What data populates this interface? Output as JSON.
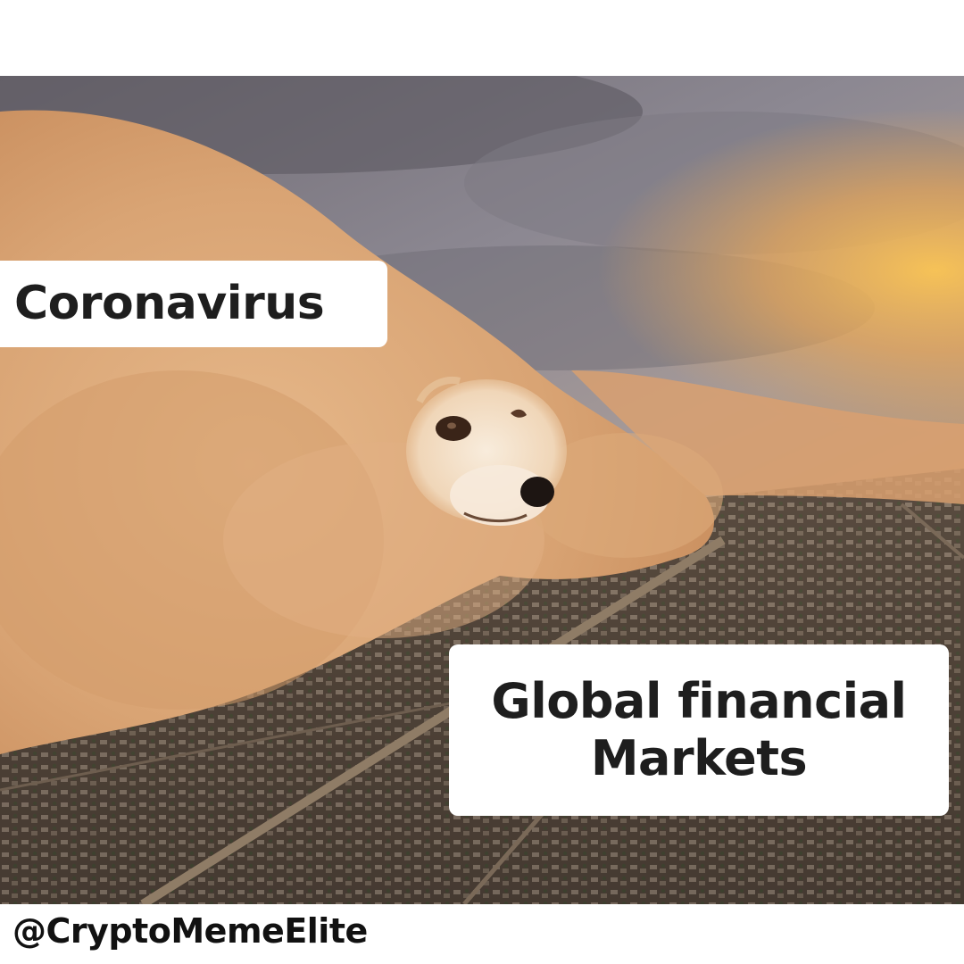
{
  "meme": {
    "top_caption": "Coronavirus",
    "bottom_caption": "Global financial\nMarkets",
    "watermark": "@CryptoMemeElite"
  },
  "colors": {
    "background": "#ffffff",
    "dust": "#d9a474",
    "sky": "#8a8690",
    "sunset": "#f0b450",
    "city": "#5a4a3c",
    "caption_text": "#1e1e1e"
  }
}
